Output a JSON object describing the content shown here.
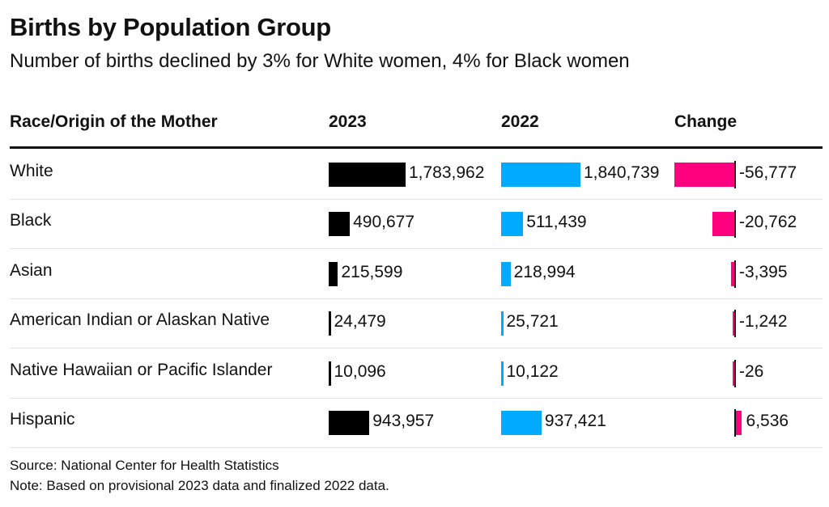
{
  "header": {
    "title": "Births by Population Group",
    "subtitle": "Number of births declined by 3% for White women, 4% for Black women"
  },
  "chart_data": {
    "type": "table",
    "columns": [
      "Race/Origin of the Mother",
      "2023",
      "2022",
      "Change"
    ],
    "rows": [
      {
        "label": "White",
        "v2023": 1783962,
        "v2022": 1840739,
        "change": -56777,
        "t2023": "1,783,962",
        "t2022": "1,840,739",
        "tchange": "-56,777"
      },
      {
        "label": "Black",
        "v2023": 490677,
        "v2022": 511439,
        "change": -20762,
        "t2023": "490,677",
        "t2022": "511,439",
        "tchange": "-20,762"
      },
      {
        "label": "Asian",
        "v2023": 215599,
        "v2022": 218994,
        "change": -3395,
        "t2023": "215,599",
        "t2022": "218,994",
        "tchange": "-3,395"
      },
      {
        "label": "American Indian or Alaskan Native",
        "v2023": 24479,
        "v2022": 25721,
        "change": -1242,
        "t2023": "24,479",
        "t2022": "25,721",
        "tchange": "-1,242"
      },
      {
        "label": "Native Hawaiian or Pacific Islander",
        "v2023": 10096,
        "v2022": 10122,
        "change": -26,
        "t2023": "10,096",
        "t2022": "10,122",
        "tchange": "-26"
      },
      {
        "label": "Hispanic",
        "v2023": 943957,
        "v2022": 937421,
        "change": 6536,
        "t2023": "943,957",
        "t2022": "937,421",
        "tchange": "6,536"
      }
    ]
  },
  "colors": {
    "bar_2023": "#000000",
    "bar_2022": "#00aaff",
    "bar_change": "#ff007f",
    "text": "#111111"
  },
  "footer": {
    "source": "Source: National Center for Health Statistics",
    "note": "Note: Based on provisional 2023 data and finalized 2022 data."
  }
}
